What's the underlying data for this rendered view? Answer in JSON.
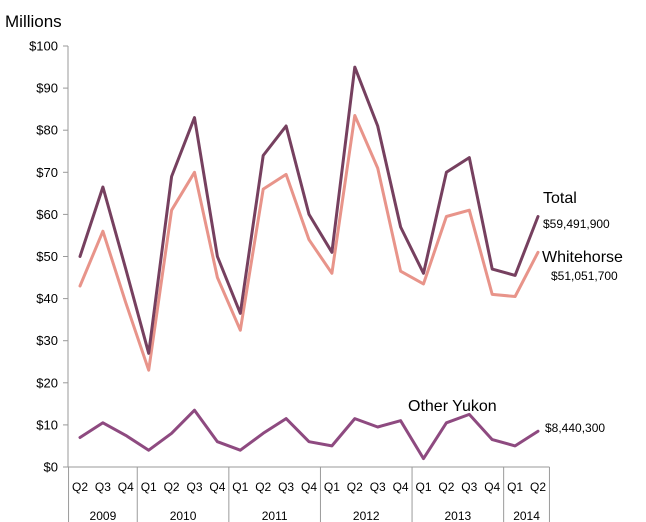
{
  "chart_data": {
    "type": "line",
    "unit_label": "Millions",
    "y_ticks": [
      "$0",
      "$10",
      "$20",
      "$30",
      "$40",
      "$50",
      "$60",
      "$70",
      "$80",
      "$90",
      "$100"
    ],
    "ylim": [
      0,
      100
    ],
    "grid": false,
    "categories": [
      "Q2",
      "Q3",
      "Q4",
      "Q1",
      "Q2",
      "Q3",
      "Q4",
      "Q1",
      "Q2",
      "Q3",
      "Q4",
      "Q1",
      "Q2",
      "Q3",
      "Q4",
      "Q1",
      "Q2",
      "Q3",
      "Q4",
      "Q1",
      "Q2"
    ],
    "year_groups": [
      {
        "year": "2009",
        "count": 3
      },
      {
        "year": "2010",
        "count": 4
      },
      {
        "year": "2011",
        "count": 4
      },
      {
        "year": "2012",
        "count": 4
      },
      {
        "year": "2013",
        "count": 4
      },
      {
        "year": "2014",
        "count": 2
      }
    ],
    "series": [
      {
        "name": "Total",
        "color": "#76405f",
        "end_value": "$59,491,900",
        "values": [
          50,
          66.5,
          47,
          27,
          69,
          83,
          50,
          36.5,
          74,
          81,
          60,
          51,
          95,
          81,
          57,
          46,
          70,
          73.5,
          47,
          45.5,
          59.5
        ]
      },
      {
        "name": "Whitehorse",
        "color": "#e8948a",
        "end_value": "$51,051,700",
        "values": [
          43,
          56,
          39,
          23,
          61,
          70,
          45,
          32.5,
          66,
          69.5,
          54,
          46,
          83.5,
          71,
          46.5,
          43.5,
          59.5,
          61,
          41,
          40.5,
          51
        ]
      },
      {
        "name": "Other Yukon",
        "color": "#8e4a80",
        "end_value": "$8,440,300",
        "values": [
          7,
          10.5,
          7.5,
          4,
          8,
          13.5,
          6,
          4,
          8,
          11.5,
          6,
          5,
          11.5,
          9.5,
          11,
          2,
          10.5,
          12.5,
          6.5,
          5,
          8.5
        ]
      }
    ]
  }
}
